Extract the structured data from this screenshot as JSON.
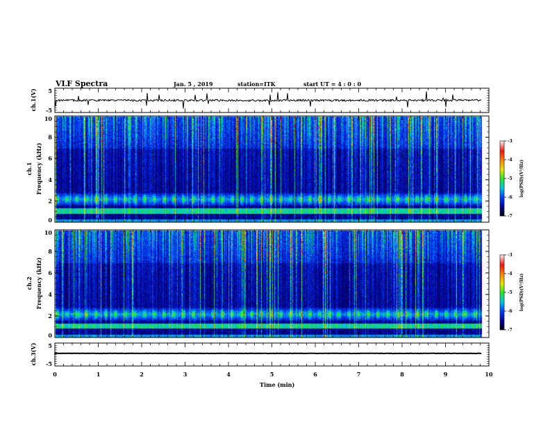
{
  "header": {
    "title": "VLF Spectra",
    "date": "Jan. 5 , 2019",
    "station": "station=ITK",
    "start": "start  UT =   4 : 0  : 0"
  },
  "chart_data": {
    "type": "heatmap",
    "title": "VLF Spectra",
    "xlabel": "Time (min)",
    "xlim": [
      0,
      10
    ],
    "x_ticks": [
      "0",
      "1",
      "2",
      "3",
      "4",
      "5",
      "6",
      "7",
      "8",
      "9",
      "10"
    ],
    "data_end_min": 9.83,
    "panels": [
      {
        "name": "ch.1(V)",
        "type": "line",
        "ylabel": "ch.1(V)",
        "ylim": [
          -5,
          5
        ],
        "y_ticks": [
          "5",
          "-5"
        ],
        "baseline": 0.0,
        "description_level": "noise around 0 V with impulsive spikes"
      },
      {
        "name": "ch.1 spectrogram",
        "type": "heatmap",
        "ylabel": "ch.1\nFrequency (kHz)",
        "ylim": [
          0,
          10
        ],
        "y_ticks": [
          "0",
          "2",
          "4",
          "6",
          "8",
          "10"
        ],
        "colorbar": {
          "label": "log(PSD)(V²/Hz)",
          "range": [
            -7,
            -3
          ],
          "ticks": [
            "-3",
            "-4",
            "-5",
            "-6",
            "-7"
          ]
        },
        "bands_khz": [
          1.1,
          2.2
        ]
      },
      {
        "name": "ch.2 spectrogram",
        "type": "heatmap",
        "ylabel": "ch.2\nFrequency (kHz)",
        "ylim": [
          0,
          10
        ],
        "y_ticks": [
          "0",
          "2",
          "4",
          "6",
          "8",
          "10"
        ],
        "colorbar": {
          "label": "log(PSD)(V²/Hz)",
          "range": [
            -7,
            -3
          ],
          "ticks": [
            "-3",
            "-4",
            "-5",
            "-6",
            "-7"
          ]
        },
        "bands_khz": [
          1.1,
          2.2
        ]
      },
      {
        "name": "ch.3(V)",
        "type": "line",
        "ylabel": "ch.3(V)",
        "ylim": [
          -5,
          5
        ],
        "y_ticks": [
          "5",
          "-5"
        ],
        "baseline": 0.5
      }
    ]
  },
  "labels": {
    "ch1": "ch.1(V)",
    "ch1spec": "ch.1",
    "ch2spec": "ch.2",
    "freq": "Frequency (kHz)",
    "ch3": "ch.3(V)",
    "cbar": "log(PSD)(V²/Hz)",
    "xlabel": "Time (min)"
  },
  "colors": {
    "axis": "#000000",
    "background": "#ffffff"
  }
}
